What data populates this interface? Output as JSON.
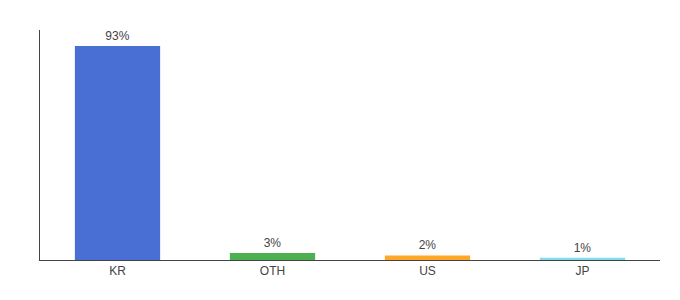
{
  "chart_data": {
    "type": "bar",
    "categories": [
      "KR",
      "OTH",
      "US",
      "JP"
    ],
    "values": [
      93,
      3,
      2,
      1
    ],
    "value_labels": [
      "93%",
      "3%",
      "2%",
      "1%"
    ],
    "data_labels": true,
    "colors": [
      "#4A6FD4",
      "#4CAF50",
      "#FFA726",
      "#80DEEA"
    ],
    "ylim": [
      0,
      100
    ],
    "grid": false,
    "tick_labels": "x"
  }
}
